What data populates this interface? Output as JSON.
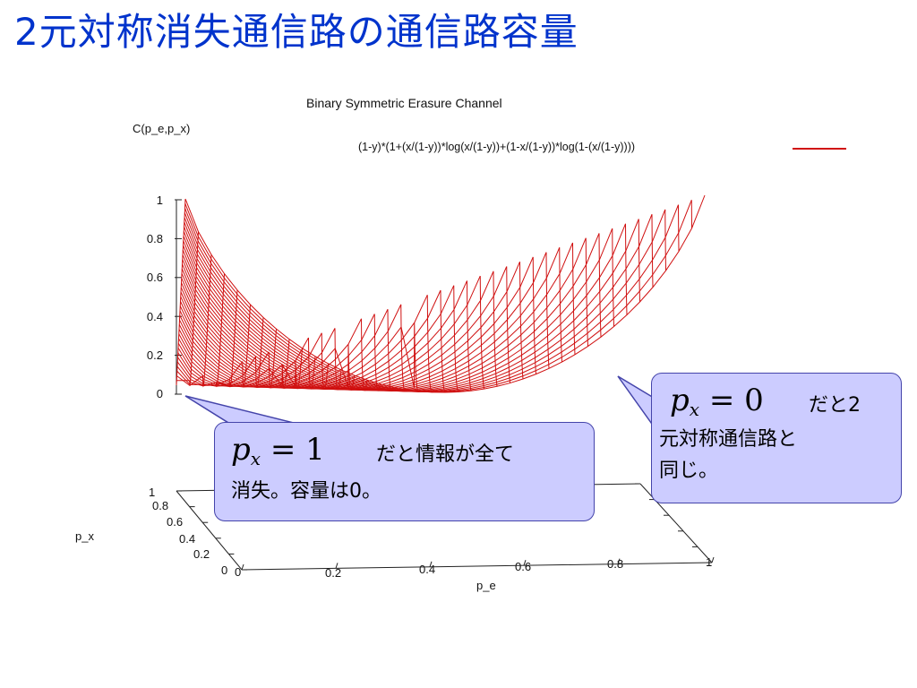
{
  "slide": {
    "title": "2元対称消失通信路の通信路容量"
  },
  "chart_data": {
    "type": "surface",
    "title": "Binary Symmetric Erasure Channel",
    "zlabel": "C(p_e,p_x)",
    "xlabel": "p_e",
    "ylabel": "p_x",
    "legend": [
      {
        "name": "(1-y)*(1+(x/(1-y))*log(x/(1-y))+(1-x/(1-y))*log(1-(x/(1-y))))",
        "color": "#d01010"
      }
    ],
    "z_ticks": [
      "1",
      "0.8",
      "0.6",
      "0.4",
      "0.2",
      "0"
    ],
    "x_ticks": [
      "0",
      "0.2",
      "0.4",
      "0.6",
      "0.8",
      "1"
    ],
    "y_ticks": [
      "1",
      "0.8",
      "0.6",
      "0.4",
      "0.2",
      "0"
    ],
    "x_range": [
      0,
      1
    ],
    "y_range": [
      0,
      1
    ],
    "z_range": [
      0,
      1
    ]
  },
  "callouts": {
    "left": {
      "formula_var": "p",
      "formula_sub": "x",
      "formula_rhs": "= 1",
      "text_line1": "だと情報が全て",
      "text_line2": "消失。容量は0。"
    },
    "right": {
      "formula_var": "p",
      "formula_sub": "x",
      "formula_rhs": "= 0",
      "text_line0": "だと2",
      "text_line1": "元対称通信路と",
      "text_line2": "同じ。"
    }
  }
}
